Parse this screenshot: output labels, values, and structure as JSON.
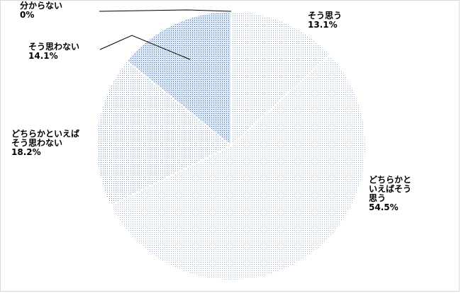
{
  "chart_data": {
    "type": "pie",
    "title": "",
    "start_angle_deg": 0,
    "direction": "clockwise",
    "slices": [
      {
        "label_lines": [
          "そう思う"
        ],
        "value_text": "13.1%",
        "value": 13.1,
        "color": "#ffffff",
        "dot_color": "#8aa4c4"
      },
      {
        "label_lines": [
          "どちらかと",
          "いえばそう",
          "思う"
        ],
        "value_text": "54.5%",
        "value": 54.5,
        "color": "#ffffff",
        "dot_color": "#9bb3cf"
      },
      {
        "label_lines": [
          "どちらかといえば",
          "そう思わない"
        ],
        "value_text": "18.2%",
        "value": 18.2,
        "color": "#ffffff",
        "dot_color": "#6f90b8"
      },
      {
        "label_lines": [
          "そう思わない"
        ],
        "value_text": "14.1%",
        "value": 14.1,
        "color": "#dce8f5",
        "dot_color": "#3f6fa8"
      },
      {
        "label_lines": [
          "分からない"
        ],
        "value_text": "0%",
        "value": 0.0,
        "color": "#ffffff",
        "dot_color": "#ffffff"
      }
    ]
  }
}
